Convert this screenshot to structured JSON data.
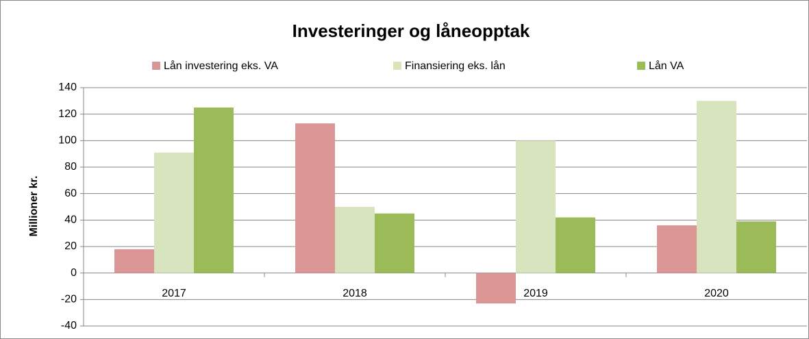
{
  "chart_data": {
    "type": "bar",
    "title": "Investeringer og låneopptak",
    "y_label": "Millioner kr.",
    "categories": [
      "2017",
      "2018",
      "2019",
      "2020"
    ],
    "series": [
      {
        "name": "Lån investering eks. VA",
        "color": "#d99694",
        "values": [
          18,
          113,
          -23,
          36
        ]
      },
      {
        "name": "Finansiering eks. lån",
        "color": "#d7e4bd",
        "values": [
          91,
          50,
          100,
          130
        ]
      },
      {
        "name": "Lån VA",
        "color": "#9bbb59",
        "values": [
          125,
          45,
          42,
          39
        ]
      }
    ],
    "ylim": [
      -40,
      140
    ],
    "yticks": [
      -40,
      -20,
      0,
      20,
      40,
      60,
      80,
      100,
      120,
      140
    ],
    "grid": true,
    "legend": "top"
  }
}
